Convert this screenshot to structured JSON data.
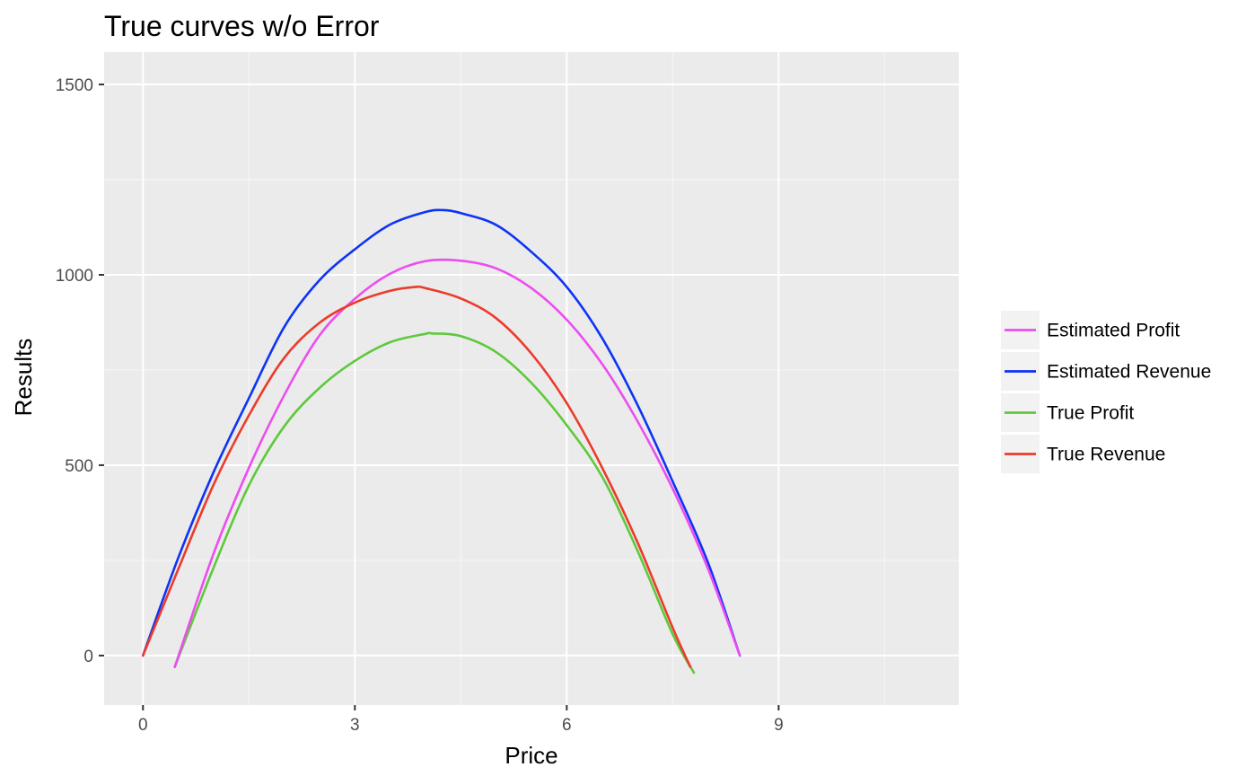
{
  "chart_data": {
    "type": "line",
    "title": "True curves w/o Error",
    "xlabel": "Price",
    "ylabel": "Results",
    "xlim": [
      -0.55,
      11.55
    ],
    "ylim": [
      -130,
      1585
    ],
    "x_ticks": [
      0,
      3,
      6,
      9
    ],
    "x_tick_labels": [
      "0",
      "3",
      "6",
      "9"
    ],
    "y_ticks": [
      0,
      500,
      1000,
      1500
    ],
    "y_tick_labels": [
      "0",
      "500",
      "1000",
      "1500"
    ],
    "grid": true,
    "legend_position": "right",
    "series": [
      {
        "name": "Estimated Profit",
        "color": "#ec4df0",
        "x": [
          0.45,
          1.0,
          1.5,
          2.0,
          2.5,
          3.0,
          3.5,
          4.0,
          4.5,
          5.0,
          5.5,
          6.0,
          6.5,
          7.0,
          7.5,
          8.0,
          8.45
        ],
        "y": [
          -30,
          268,
          493,
          684,
          841,
          937,
          1003,
          1036,
          1037,
          1017,
          965,
          882,
          766,
          616,
          438,
          228,
          0
        ]
      },
      {
        "name": "Estimated Revenue",
        "color": "#0e33f5",
        "x": [
          0.0,
          0.5,
          1.0,
          1.5,
          2.0,
          2.5,
          3.0,
          3.5,
          4.0,
          4.25,
          4.5,
          5.0,
          5.5,
          6.0,
          6.5,
          7.0,
          7.5,
          8.0,
          8.45
        ],
        "y": [
          0,
          257,
          482,
          676,
          863,
          986,
          1067,
          1132,
          1165,
          1170,
          1162,
          1131,
          1060,
          968,
          834,
          659,
          457,
          244,
          0
        ]
      },
      {
        "name": "True Profit",
        "color": "#5ec93b",
        "x": [
          0.45,
          1.0,
          1.5,
          2.0,
          2.5,
          3.0,
          3.5,
          4.0,
          4.1,
          4.5,
          5.0,
          5.5,
          6.0,
          6.5,
          7.0,
          7.5,
          7.8
        ],
        "y": [
          -30,
          231,
          447,
          602,
          703,
          774,
          823,
          845,
          846,
          839,
          797,
          716,
          605,
          470,
          276,
          56,
          -45
        ]
      },
      {
        "name": "True Revenue",
        "color": "#eb3b2b",
        "x": [
          0.0,
          0.5,
          1.0,
          1.5,
          2.0,
          2.5,
          3.0,
          3.5,
          3.85,
          4.0,
          4.5,
          5.0,
          5.5,
          6.0,
          6.5,
          7.0,
          7.5,
          7.75
        ],
        "y": [
          0,
          227,
          449,
          631,
          782,
          874,
          927,
          958,
          968,
          965,
          938,
          886,
          793,
          663,
          494,
          298,
          73,
          -30
        ]
      }
    ]
  },
  "colors": {
    "panel_background": "#ebebeb",
    "grid_major": "#ffffff",
    "grid_minor": "#f5f5f5",
    "legend_key_background": "#f2f2f2"
  }
}
